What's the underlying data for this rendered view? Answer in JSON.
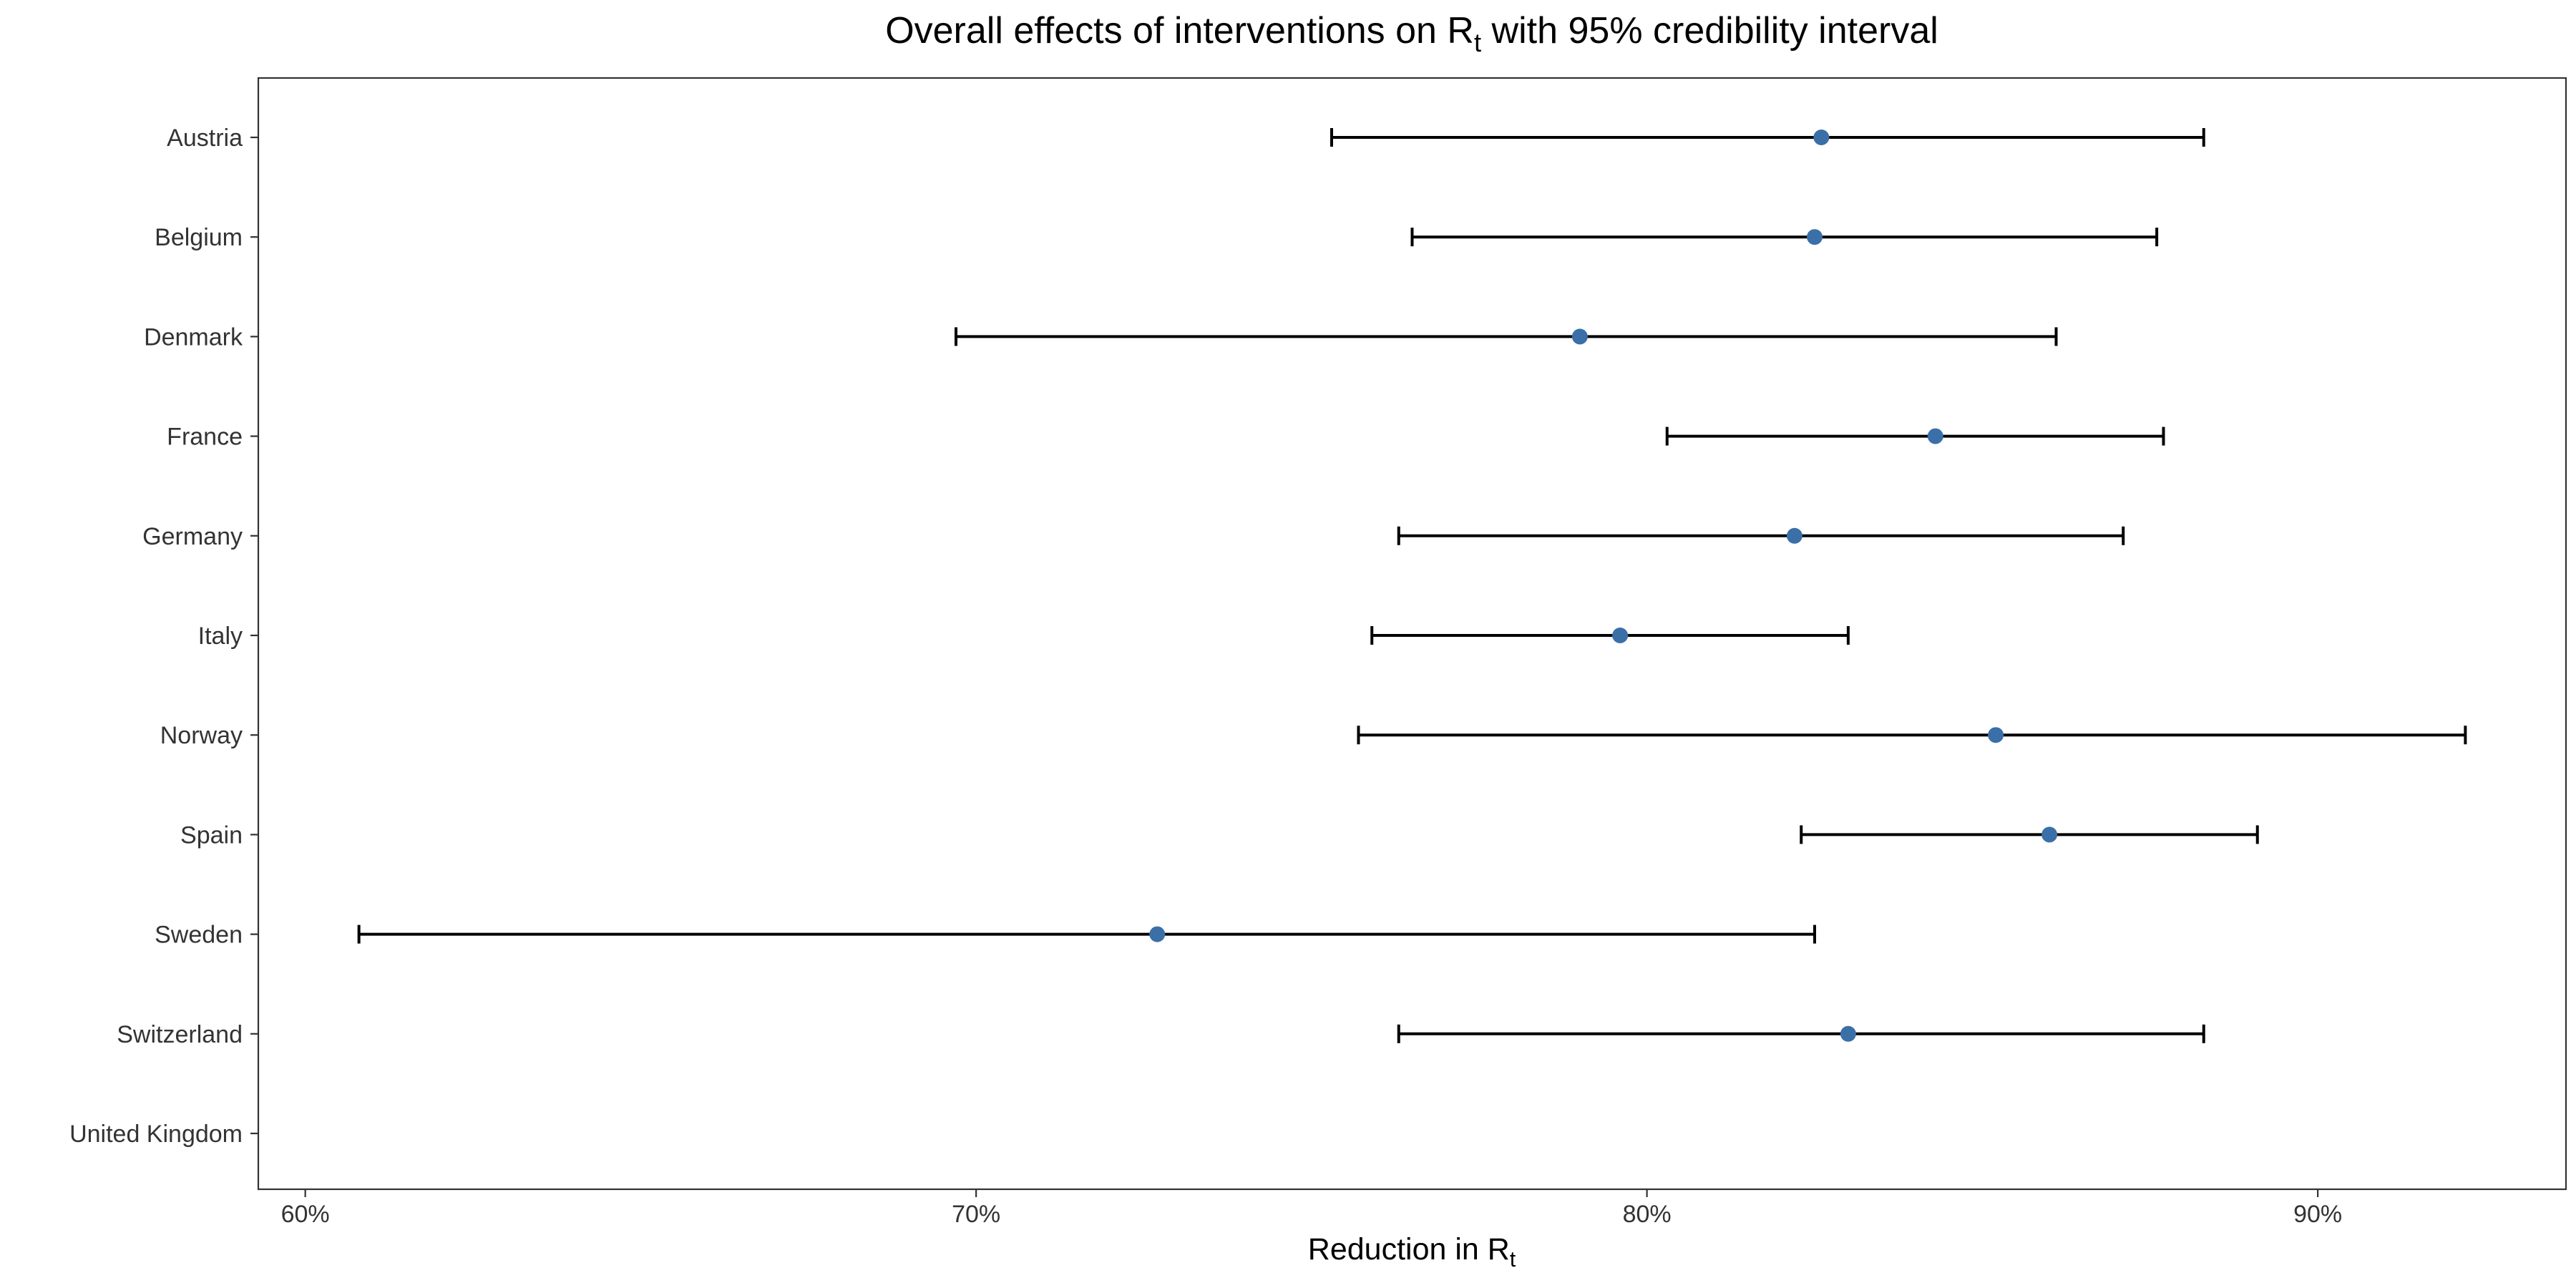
{
  "chart_data": {
    "type": "forest",
    "title": {
      "prefix": "Overall effects of interventions on R",
      "subscript": "t",
      "suffix": " with 95% credibility interval"
    },
    "xlabel": {
      "prefix": "Reduction in R",
      "subscript": "t"
    },
    "ylabel": "",
    "xlim": [
      59.3,
      93.7
    ],
    "x_ticks": [
      60,
      70,
      80,
      90
    ],
    "x_tick_labels": [
      "60%",
      "70%",
      "80%",
      "90%"
    ],
    "categories": [
      "Austria",
      "Belgium",
      "Denmark",
      "France",
      "Germany",
      "Italy",
      "Norway",
      "Spain",
      "Sweden",
      "Switzerland",
      "United Kingdom"
    ],
    "series": [
      {
        "estimate": [
          82.6,
          82.5,
          79.0,
          84.3,
          82.2,
          79.6,
          85.2,
          86.0,
          72.7,
          83.0,
          null
        ],
        "lower": [
          75.3,
          76.5,
          69.7,
          80.3,
          76.3,
          75.9,
          75.7,
          82.3,
          60.8,
          76.3,
          null
        ],
        "upper": [
          88.3,
          87.6,
          86.1,
          87.7,
          87.1,
          83.0,
          92.2,
          89.1,
          82.5,
          88.3,
          null
        ]
      }
    ],
    "point_color": "#3b6fa8",
    "errorbar_color": "#000000",
    "grid": false,
    "legend": "none"
  }
}
